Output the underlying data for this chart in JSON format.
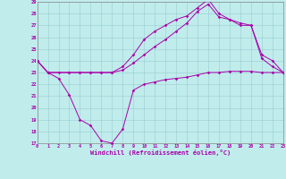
{
  "bg_color": "#c0ecec",
  "grid_color": "#98ccd0",
  "line_color": "#aa00aa",
  "xlim": [
    0,
    23
  ],
  "ylim": [
    17,
    29
  ],
  "yticks": [
    17,
    18,
    19,
    20,
    21,
    22,
    23,
    24,
    25,
    26,
    27,
    28,
    29
  ],
  "xticks": [
    0,
    1,
    2,
    3,
    4,
    5,
    6,
    7,
    8,
    9,
    10,
    11,
    12,
    13,
    14,
    15,
    16,
    17,
    18,
    19,
    20,
    21,
    22,
    23
  ],
  "xlabel": "Windchill (Refroidissement éolien,°C)",
  "line1_x": [
    0,
    1,
    2,
    3,
    4,
    5,
    6,
    7,
    8,
    9,
    10,
    11,
    12,
    13,
    14,
    15,
    16,
    17,
    18,
    19,
    20,
    21,
    22,
    23
  ],
  "line1_y": [
    24,
    23,
    22.5,
    21.1,
    19.0,
    18.5,
    17.2,
    17.0,
    18.2,
    21.5,
    22.0,
    22.2,
    22.4,
    22.5,
    22.6,
    22.8,
    23.0,
    23.0,
    23.1,
    23.1,
    23.1,
    23.0,
    23.0,
    23.0
  ],
  "line2_x": [
    0,
    1,
    3,
    4,
    5,
    6,
    7,
    8,
    9,
    10,
    11,
    12,
    13,
    14,
    15,
    16,
    17,
    18,
    19,
    20,
    21,
    22,
    23
  ],
  "line2_y": [
    24,
    23,
    23,
    23,
    23,
    23,
    23,
    23.5,
    24.5,
    25.8,
    26.5,
    27.0,
    27.5,
    27.8,
    28.5,
    29.2,
    28.0,
    27.5,
    27.0,
    27.0,
    24.2,
    23.5,
    23.0
  ],
  "line3_x": [
    0,
    1,
    2,
    3,
    4,
    5,
    6,
    7,
    8,
    9,
    10,
    11,
    12,
    13,
    14,
    15,
    16,
    17,
    18,
    19,
    20,
    21,
    22,
    23
  ],
  "line3_y": [
    24,
    23,
    23,
    23,
    23,
    23,
    23,
    23,
    23.2,
    23.8,
    24.5,
    25.2,
    25.8,
    26.5,
    27.2,
    28.2,
    28.8,
    27.7,
    27.5,
    27.2,
    27.0,
    24.5,
    24.0,
    23.0
  ]
}
